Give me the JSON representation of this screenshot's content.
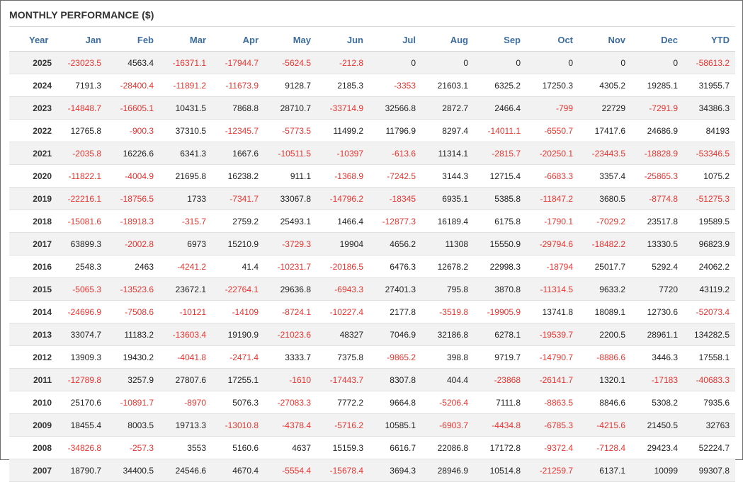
{
  "title": "MONTHLY PERFORMANCE ($)",
  "colors": {
    "header_text": "#3d6d9e",
    "negative": "#e8342f",
    "positive": "#222222",
    "stripe": "#f2f2f2"
  },
  "chart_data": {
    "type": "table",
    "title": "MONTHLY PERFORMANCE ($)",
    "columns": [
      "Year",
      "Jan",
      "Feb",
      "Mar",
      "Apr",
      "May",
      "Jun",
      "Jul",
      "Aug",
      "Sep",
      "Oct",
      "Nov",
      "Dec",
      "YTD"
    ],
    "rows": [
      [
        "2025",
        "-23023.5",
        "4563.4",
        "-16371.1",
        "-17944.7",
        "-5624.5",
        "-212.8",
        "0",
        "0",
        "0",
        "0",
        "0",
        "0",
        "-58613.2"
      ],
      [
        "2024",
        "7191.3",
        "-28400.4",
        "-11891.2",
        "-11673.9",
        "9128.7",
        "2185.3",
        "-3353",
        "21603.1",
        "6325.2",
        "17250.3",
        "4305.2",
        "19285.1",
        "31955.7"
      ],
      [
        "2023",
        "-14848.7",
        "-16605.1",
        "10431.5",
        "7868.8",
        "28710.7",
        "-33714.9",
        "32566.8",
        "2872.7",
        "2466.4",
        "-799",
        "22729",
        "-7291.9",
        "34386.3"
      ],
      [
        "2022",
        "12765.8",
        "-900.3",
        "37310.5",
        "-12345.7",
        "-5773.5",
        "11499.2",
        "11796.9",
        "8297.4",
        "-14011.1",
        "-6550.7",
        "17417.6",
        "24686.9",
        "84193"
      ],
      [
        "2021",
        "-2035.8",
        "16226.6",
        "6341.3",
        "1667.6",
        "-10511.5",
        "-10397",
        "-613.6",
        "11314.1",
        "-2815.7",
        "-20250.1",
        "-23443.5",
        "-18828.9",
        "-53346.5"
      ],
      [
        "2020",
        "-11822.1",
        "-4004.9",
        "21695.8",
        "16238.2",
        "911.1",
        "-1368.9",
        "-7242.5",
        "3144.3",
        "12715.4",
        "-6683.3",
        "3357.4",
        "-25865.3",
        "1075.2"
      ],
      [
        "2019",
        "-22216.1",
        "-18756.5",
        "1733",
        "-7341.7",
        "33067.8",
        "-14796.2",
        "-18345",
        "6935.1",
        "5385.8",
        "-11847.2",
        "3680.5",
        "-8774.8",
        "-51275.3"
      ],
      [
        "2018",
        "-15081.6",
        "-18918.3",
        "-315.7",
        "2759.2",
        "25493.1",
        "1466.4",
        "-12877.3",
        "16189.4",
        "6175.8",
        "-1790.1",
        "-7029.2",
        "23517.8",
        "19589.5"
      ],
      [
        "2017",
        "63899.3",
        "-2002.8",
        "6973",
        "15210.9",
        "-3729.3",
        "19904",
        "4656.2",
        "11308",
        "15550.9",
        "-29794.6",
        "-18482.2",
        "13330.5",
        "96823.9"
      ],
      [
        "2016",
        "2548.3",
        "2463",
        "-4241.2",
        "41.4",
        "-10231.7",
        "-20186.5",
        "6476.3",
        "12678.2",
        "22998.3",
        "-18794",
        "25017.7",
        "5292.4",
        "24062.2"
      ],
      [
        "2015",
        "-5065.3",
        "-13523.6",
        "23672.1",
        "-22764.1",
        "29636.8",
        "-6943.3",
        "27401.3",
        "795.8",
        "3870.8",
        "-11314.5",
        "9633.2",
        "7720",
        "43119.2"
      ],
      [
        "2014",
        "-24696.9",
        "-7508.6",
        "-10121",
        "-14109",
        "-8724.1",
        "-10227.4",
        "2177.8",
        "-3519.8",
        "-19905.9",
        "13741.8",
        "18089.1",
        "12730.6",
        "-52073.4"
      ],
      [
        "2013",
        "33074.7",
        "11183.2",
        "-13603.4",
        "19190.9",
        "-21023.6",
        "48327",
        "7046.9",
        "32186.8",
        "6278.1",
        "-19539.7",
        "2200.5",
        "28961.1",
        "134282.5"
      ],
      [
        "2012",
        "13909.3",
        "19430.2",
        "-4041.8",
        "-2471.4",
        "3333.7",
        "7375.8",
        "-9865.2",
        "398.8",
        "9719.7",
        "-14790.7",
        "-8886.6",
        "3446.3",
        "17558.1"
      ],
      [
        "2011",
        "-12789.8",
        "3257.9",
        "27807.6",
        "17255.1",
        "-1610",
        "-17443.7",
        "8307.8",
        "404.4",
        "-23868",
        "-26141.7",
        "1320.1",
        "-17183",
        "-40683.3"
      ],
      [
        "2010",
        "25170.6",
        "-10891.7",
        "-8970",
        "5076.3",
        "-27083.3",
        "7772.2",
        "9664.8",
        "-5206.4",
        "7111.8",
        "-8863.5",
        "8846.6",
        "5308.2",
        "7935.6"
      ],
      [
        "2009",
        "18455.4",
        "8003.5",
        "19713.3",
        "-13010.8",
        "-4378.4",
        "-5716.2",
        "10585.1",
        "-6903.7",
        "-4434.8",
        "-6785.3",
        "-4215.6",
        "21450.5",
        "32763"
      ],
      [
        "2008",
        "-34826.8",
        "-257.3",
        "3553",
        "5160.6",
        "4637",
        "15159.3",
        "6616.7",
        "22086.8",
        "17172.8",
        "-9372.4",
        "-7128.4",
        "29423.4",
        "52224.7"
      ],
      [
        "2007",
        "18790.7",
        "34400.5",
        "24546.6",
        "4670.4",
        "-5554.4",
        "-15678.4",
        "3694.3",
        "28946.9",
        "10514.8",
        "-21259.7",
        "6137.1",
        "10099",
        "99307.8"
      ]
    ]
  }
}
